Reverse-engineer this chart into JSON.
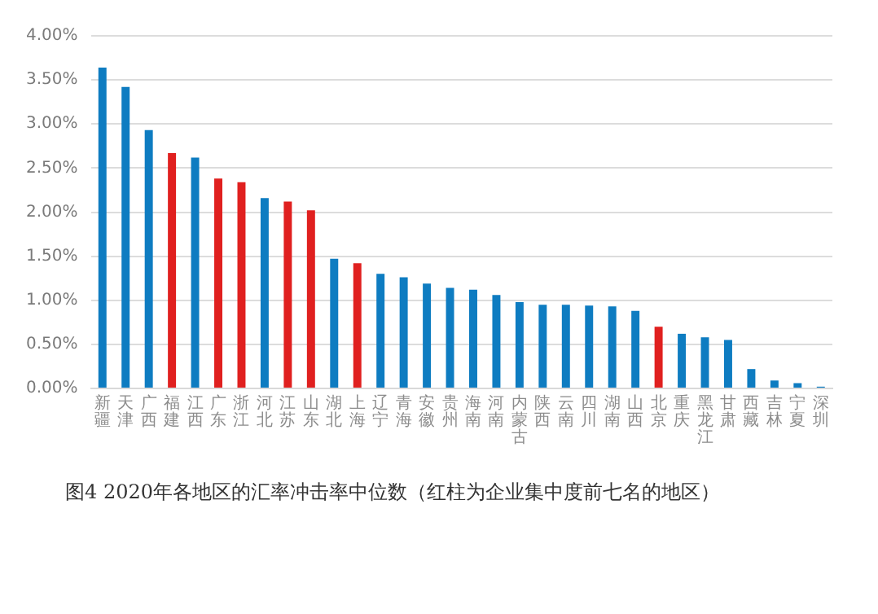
{
  "chart_data": {
    "type": "bar",
    "categories": [
      "新疆",
      "天津",
      "广西",
      "福建",
      "江西",
      "广东",
      "浙江",
      "河北",
      "江苏",
      "山东",
      "湖北",
      "上海",
      "辽宁",
      "青海",
      "安徽",
      "贵州",
      "海南",
      "河南",
      "内蒙古",
      "陕西",
      "云南",
      "四川",
      "湖南",
      "山西",
      "北京",
      "重庆",
      "黑龙江",
      "甘肃",
      "西藏",
      "吉林",
      "宁夏",
      "深圳"
    ],
    "values": [
      3.64,
      3.42,
      2.93,
      2.67,
      2.62,
      2.38,
      2.34,
      2.16,
      2.12,
      2.02,
      1.47,
      1.42,
      1.3,
      1.26,
      1.19,
      1.14,
      1.12,
      1.06,
      0.98,
      0.95,
      0.95,
      0.94,
      0.93,
      0.88,
      0.7,
      0.62,
      0.58,
      0.55,
      0.22,
      0.09,
      0.06,
      0.02
    ],
    "colors": [
      "#0e7cc1",
      "#0e7cc1",
      "#0e7cc1",
      "#e0201f",
      "#0e7cc1",
      "#e0201f",
      "#e0201f",
      "#0e7cc1",
      "#e0201f",
      "#e0201f",
      "#0e7cc1",
      "#e0201f",
      "#0e7cc1",
      "#0e7cc1",
      "#0e7cc1",
      "#0e7cc1",
      "#0e7cc1",
      "#0e7cc1",
      "#0e7cc1",
      "#0e7cc1",
      "#0e7cc1",
      "#0e7cc1",
      "#0e7cc1",
      "#0e7cc1",
      "#e0201f",
      "#0e7cc1",
      "#0e7cc1",
      "#0e7cc1",
      "#0e7cc1",
      "#0e7cc1",
      "#0e7cc1",
      "#0e7cc1"
    ],
    "ylim": [
      0,
      4
    ],
    "yticks": [
      {
        "value": 0,
        "label": "0.00%"
      },
      {
        "value": 0.5,
        "label": "0.50%"
      },
      {
        "value": 1,
        "label": "1.00%"
      },
      {
        "value": 1.5,
        "label": "1.50%"
      },
      {
        "value": 2,
        "label": "2.00%"
      },
      {
        "value": 2.5,
        "label": "2.50%"
      },
      {
        "value": 3,
        "label": "3.00%"
      },
      {
        "value": 3.5,
        "label": "3.50%"
      },
      {
        "value": 4,
        "label": "4.00%"
      }
    ],
    "grid": "y",
    "annotations": [
      "图4  2020年各地区的汇率冲击率中位数（红柱为企业集中度前七名的地区）"
    ]
  }
}
